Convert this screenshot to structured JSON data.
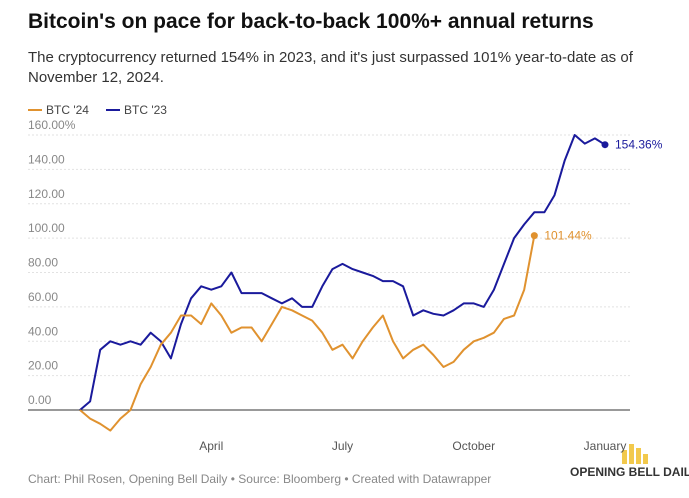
{
  "chart_data": {
    "type": "line",
    "title": "Bitcoin's on pace for back-to-back 100%+ annual returns",
    "subtitle": "The cryptocurrency returned 154% in 2023, and it's just surpassed 101% year-to-date as of November 12, 2024.",
    "source": "Chart: Phil Rosen, Opening Bell Daily • Source: Bloomberg • Created with Datawrapper",
    "logo_text": "OPENING BELL DAILY",
    "categories": [
      null,
      null,
      null,
      null,
      null,
      null,
      null,
      null,
      null,
      null,
      null,
      null,
      null,
      "April",
      null,
      null,
      null,
      null,
      null,
      null,
      null,
      null,
      null,
      null,
      null,
      null,
      "July",
      null,
      null,
      null,
      null,
      null,
      null,
      null,
      null,
      null,
      null,
      null,
      null,
      "October",
      null,
      null,
      null,
      null,
      null,
      null,
      null,
      null,
      null,
      null,
      null,
      null,
      "January"
    ],
    "series": [
      {
        "name": "BTC '24",
        "color": "#e0922f",
        "values": [
          0,
          -5,
          -8,
          -12,
          -5,
          0,
          15,
          25,
          38,
          45,
          55,
          55,
          50,
          62,
          55,
          45,
          48,
          48,
          40,
          50,
          60,
          58,
          55,
          52,
          45,
          35,
          38,
          30,
          40,
          48,
          55,
          40,
          30,
          35,
          38,
          32,
          25,
          28,
          35,
          40,
          42,
          45,
          53,
          55,
          70,
          101.44,
          null,
          null,
          null,
          null,
          null,
          null,
          null
        ],
        "value_labels": [
          null,
          null,
          null,
          null,
          null,
          null,
          null,
          null,
          null,
          null,
          null,
          null,
          null,
          null,
          null,
          null,
          null,
          null,
          null,
          null,
          null,
          null,
          null,
          null,
          null,
          null,
          null,
          null,
          null,
          null,
          null,
          null,
          null,
          null,
          null,
          null,
          null,
          null,
          null,
          null,
          null,
          null,
          null,
          null,
          null,
          "101.44%",
          null,
          null,
          null,
          null,
          null,
          null,
          null
        ]
      },
      {
        "name": "BTC '23",
        "color": "#1a1a9c",
        "values": [
          0,
          5,
          35,
          40,
          38,
          40,
          38,
          45,
          40,
          30,
          50,
          65,
          72,
          70,
          72,
          80,
          68,
          68,
          68,
          65,
          62,
          65,
          60,
          60,
          72,
          82,
          85,
          82,
          80,
          78,
          75,
          75,
          72,
          55,
          58,
          56,
          55,
          58,
          62,
          62,
          60,
          70,
          85,
          100,
          108,
          115,
          115,
          125,
          145,
          160,
          155,
          158,
          154.36
        ],
        "value_labels": [
          null,
          null,
          null,
          null,
          null,
          null,
          null,
          null,
          null,
          null,
          null,
          null,
          null,
          null,
          null,
          null,
          null,
          null,
          null,
          null,
          null,
          null,
          null,
          null,
          null,
          null,
          null,
          null,
          null,
          null,
          null,
          null,
          null,
          null,
          null,
          null,
          null,
          null,
          null,
          null,
          null,
          null,
          null,
          null,
          null,
          null,
          null,
          null,
          null,
          null,
          null,
          null,
          "154.36%"
        ]
      }
    ],
    "ylim": [
      -12,
      165
    ],
    "yticks": [
      {
        "value": 0,
        "label": "0.00"
      },
      {
        "value": 20,
        "label": "20.00"
      },
      {
        "value": 40,
        "label": "40.00"
      },
      {
        "value": 60,
        "label": "60.00"
      },
      {
        "value": 80,
        "label": "80.00"
      },
      {
        "value": 100,
        "label": "100.00"
      },
      {
        "value": 120,
        "label": "120.00"
      },
      {
        "value": 140,
        "label": "140.00"
      },
      {
        "value": 160,
        "label": "160.00%"
      }
    ],
    "grid": true,
    "legend": "top-left"
  }
}
